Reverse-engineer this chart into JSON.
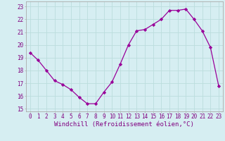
{
  "x": [
    0,
    1,
    2,
    3,
    4,
    5,
    6,
    7,
    8,
    9,
    10,
    11,
    12,
    13,
    14,
    15,
    16,
    17,
    18,
    19,
    20,
    21,
    22,
    23
  ],
  "y": [
    19.4,
    18.8,
    18.0,
    17.2,
    16.9,
    16.5,
    15.9,
    15.4,
    15.4,
    16.3,
    17.1,
    18.5,
    20.0,
    21.1,
    21.2,
    21.6,
    22.0,
    22.7,
    22.7,
    22.8,
    22.0,
    21.1,
    19.8,
    16.8
  ],
  "line_color": "#990099",
  "marker": "D",
  "marker_size": 2.2,
  "bg_color": "#d6eef2",
  "grid_color": "#bbdddd",
  "ylabel_ticks": [
    15,
    16,
    17,
    18,
    19,
    20,
    21,
    22,
    23
  ],
  "xlabel_ticks": [
    0,
    1,
    2,
    3,
    4,
    5,
    6,
    7,
    8,
    9,
    10,
    11,
    12,
    13,
    14,
    15,
    16,
    17,
    18,
    19,
    20,
    21,
    22,
    23
  ],
  "xlabel": "Windchill (Refroidissement éolien,°C)",
  "ylim": [
    14.8,
    23.4
  ],
  "xlim": [
    -0.5,
    23.5
  ],
  "tick_color": "#800080",
  "tick_fontsize": 5.5,
  "xlabel_fontsize": 6.5,
  "axis_color": "#aaaaaa"
}
